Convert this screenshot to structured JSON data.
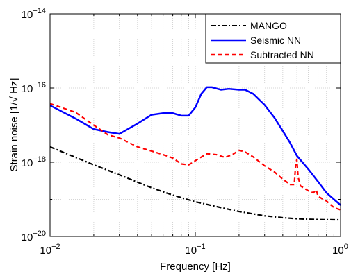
{
  "chart_data": {
    "type": "line",
    "xlabel": "Frequency [Hz]",
    "ylabel": "Strain noise [1/√ Hz]",
    "x_scale": "log",
    "y_scale": "log",
    "xlim": [
      0.01,
      1
    ],
    "ylim": [
      1e-20,
      1e-14
    ],
    "grid": true,
    "legend_position": "top-right",
    "x_ticks": [
      {
        "value": 0.01,
        "base": "10",
        "exp": "−2"
      },
      {
        "value": 0.1,
        "base": "10",
        "exp": "−1"
      },
      {
        "value": 1,
        "base": "10",
        "exp": "0"
      }
    ],
    "y_ticks": [
      {
        "value": 1e-20,
        "base": "10",
        "exp": "−20"
      },
      {
        "value": 1e-18,
        "base": "10",
        "exp": "−18"
      },
      {
        "value": 1e-16,
        "base": "10",
        "exp": "−16"
      },
      {
        "value": 1e-14,
        "base": "10",
        "exp": "−14"
      }
    ],
    "series": [
      {
        "name": "MANGO",
        "color": "#000000",
        "dash": "dashdot",
        "points": [
          [
            0.01,
            2.6e-18
          ],
          [
            0.015,
            1.35e-18
          ],
          [
            0.02,
            8.5e-19
          ],
          [
            0.03,
            4.6e-19
          ],
          [
            0.04,
            2.9e-19
          ],
          [
            0.05,
            2.05e-19
          ],
          [
            0.07,
            1.3e-19
          ],
          [
            0.1,
            8.6e-20
          ],
          [
            0.15,
            6e-20
          ],
          [
            0.2,
            4.7e-20
          ],
          [
            0.3,
            3.6e-20
          ],
          [
            0.4,
            3.2e-20
          ],
          [
            0.5,
            3e-20
          ],
          [
            0.7,
            2.85e-20
          ],
          [
            1.0,
            2.8e-20
          ]
        ]
      },
      {
        "name": "Seismic NN",
        "color": "#0000ff",
        "dash": "solid",
        "points": [
          [
            0.01,
            3.4e-17
          ],
          [
            0.015,
            1.5e-17
          ],
          [
            0.02,
            7.8e-18
          ],
          [
            0.025,
            6.5e-18
          ],
          [
            0.03,
            5.8e-18
          ],
          [
            0.04,
            1.1e-17
          ],
          [
            0.05,
            1.9e-17
          ],
          [
            0.06,
            2.1e-17
          ],
          [
            0.07,
            2.1e-17
          ],
          [
            0.08,
            1.8e-17
          ],
          [
            0.09,
            1.8e-17
          ],
          [
            0.1,
            3e-17
          ],
          [
            0.11,
            7e-17
          ],
          [
            0.12,
            1.05e-16
          ],
          [
            0.13,
            1.05e-16
          ],
          [
            0.15,
            9e-17
          ],
          [
            0.17,
            9.5e-17
          ],
          [
            0.2,
            9e-17
          ],
          [
            0.22,
            9e-17
          ],
          [
            0.25,
            7e-17
          ],
          [
            0.3,
            3.5e-17
          ],
          [
            0.35,
            1.6e-17
          ],
          [
            0.4,
            7e-18
          ],
          [
            0.45,
            3.3e-18
          ],
          [
            0.5,
            1.5e-18
          ],
          [
            0.6,
            6.5e-19
          ],
          [
            0.7,
            3e-19
          ],
          [
            0.8,
            1.5e-19
          ],
          [
            0.9,
            1e-19
          ],
          [
            1.0,
            7e-20
          ]
        ]
      },
      {
        "name": "Subtracted NN",
        "color": "#ff0000",
        "dash": "dashed",
        "points": [
          [
            0.01,
            3.8e-17
          ],
          [
            0.015,
            2.2e-17
          ],
          [
            0.02,
            1e-17
          ],
          [
            0.025,
            5.5e-18
          ],
          [
            0.03,
            4.5e-18
          ],
          [
            0.04,
            2.6e-18
          ],
          [
            0.05,
            2e-18
          ],
          [
            0.06,
            1.6e-18
          ],
          [
            0.07,
            1.3e-18
          ],
          [
            0.08,
            9e-19
          ],
          [
            0.09,
            8.5e-19
          ],
          [
            0.1,
            1.1e-18
          ],
          [
            0.12,
            1.7e-18
          ],
          [
            0.14,
            1.6e-18
          ],
          [
            0.16,
            1.35e-18
          ],
          [
            0.18,
            1.6e-18
          ],
          [
            0.2,
            2.1e-18
          ],
          [
            0.22,
            1.9e-18
          ],
          [
            0.25,
            1.4e-18
          ],
          [
            0.3,
            8e-19
          ],
          [
            0.35,
            5.5e-19
          ],
          [
            0.4,
            3.5e-19
          ],
          [
            0.45,
            2.5e-19
          ],
          [
            0.48,
            2.5e-19
          ],
          [
            0.49,
            8e-19
          ],
          [
            0.5,
            1.2e-18
          ],
          [
            0.51,
            4e-19
          ],
          [
            0.53,
            2.3e-19
          ],
          [
            0.6,
            1.7e-19
          ],
          [
            0.65,
            1.5e-19
          ],
          [
            0.68,
            1.8e-19
          ],
          [
            0.7,
            1.2e-19
          ],
          [
            0.8,
            9e-20
          ],
          [
            0.9,
            6e-20
          ],
          [
            1.0,
            5.2e-20
          ]
        ]
      }
    ]
  }
}
